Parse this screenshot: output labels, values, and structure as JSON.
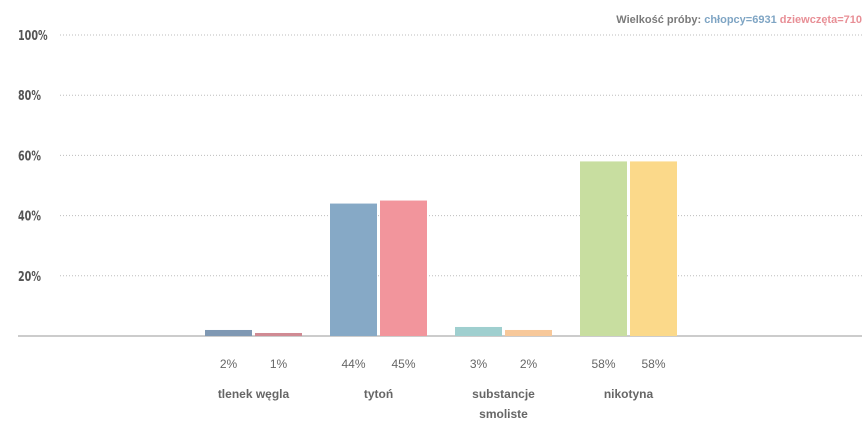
{
  "sample_size": {
    "label": "Wielkość próby:",
    "boys": "chłopcy=6931",
    "girls": "dziewczęta=710"
  },
  "colors": {
    "grid": "#bdbdbd",
    "axis": "#9a9a9a",
    "tick_text": "#555555",
    "value_text": "#666666",
    "category_text": "#666666"
  },
  "chart_data": {
    "type": "bar",
    "ylim": [
      0,
      100
    ],
    "yticks": [
      0,
      20,
      40,
      60,
      80,
      100
    ],
    "ytick_labels": [
      "",
      "20%",
      "40%",
      "60%",
      "80%",
      "100%"
    ],
    "grid": true,
    "categories": [
      "tlenek węgla",
      "tytoń",
      "substancje smoliste",
      "nikotyna"
    ],
    "category_lines": [
      [
        "tlenek węgla"
      ],
      [
        "tytoń"
      ],
      [
        "substancje",
        "smoliste"
      ],
      [
        "nikotyna"
      ]
    ],
    "series": [
      {
        "name": "chłopcy",
        "values": [
          2,
          44,
          3,
          58
        ],
        "labels": [
          "2%",
          "44%",
          "3%",
          "58%"
        ]
      },
      {
        "name": "dziewczęta",
        "values": [
          1,
          45,
          2,
          58
        ],
        "labels": [
          "1%",
          "45%",
          "2%",
          "58%"
        ]
      }
    ],
    "bar_colors": [
      [
        "#7f98b3",
        "#d08a93"
      ],
      [
        "#86a9c6",
        "#f2959c"
      ],
      [
        "#9fcfcf",
        "#f7c89a"
      ],
      [
        "#c8dea0",
        "#fbd98a"
      ]
    ]
  }
}
